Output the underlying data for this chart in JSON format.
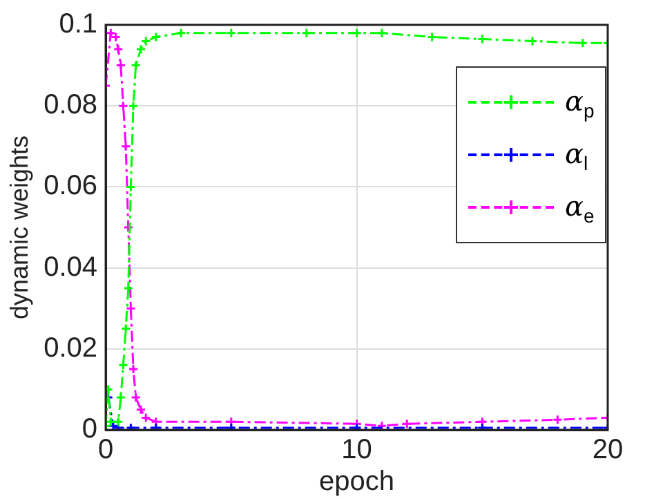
{
  "chart_data": {
    "type": "line",
    "xlabel": "epoch",
    "ylabel": "dynamic weights",
    "xlim": [
      0,
      20
    ],
    "xticks": [
      0,
      10,
      20
    ],
    "ylim": [
      0,
      0.1
    ],
    "yticks": [
      0,
      0.02,
      0.04,
      0.06,
      0.08,
      0.1
    ],
    "grid": true,
    "legend": "top right",
    "marker": "cross",
    "line_style": "dashed",
    "series": [
      {
        "name": "α$_{p}$",
        "color": "#00ff00",
        "x": [
          0,
          0.1,
          0.2,
          0.5,
          0.6,
          0.7,
          0.8,
          0.9,
          1.0,
          1.1,
          1.2,
          1.4,
          1.6,
          2,
          3,
          5,
          8,
          10,
          11,
          13,
          15,
          17,
          19,
          20
        ],
        "values": [
          0.001,
          0.01,
          0.002,
          0.002,
          0.008,
          0.016,
          0.025,
          0.035,
          0.06,
          0.08,
          0.09,
          0.094,
          0.096,
          0.097,
          0.098,
          0.098,
          0.098,
          0.098,
          0.098,
          0.097,
          0.0965,
          0.096,
          0.0955,
          0.0955
        ]
      },
      {
        "name": "α$_{l}$",
        "color": "#0000ff",
        "x": [
          0.1,
          0.3,
          0.5,
          1,
          2,
          5,
          10,
          15,
          20
        ],
        "values": [
          0.008,
          0.001,
          0.0005,
          0.0005,
          0.0005,
          0.0005,
          0.0005,
          0.0005,
          0.0005
        ]
      },
      {
        "name": "α$_{e}$",
        "color": "#ff00ff",
        "x": [
          0,
          0.2,
          0.4,
          0.5,
          0.6,
          0.7,
          0.8,
          0.9,
          1.0,
          1.1,
          1.2,
          1.4,
          1.6,
          2,
          5,
          10,
          11,
          12,
          15,
          18,
          20
        ],
        "values": [
          0.085,
          0.098,
          0.097,
          0.094,
          0.09,
          0.08,
          0.07,
          0.05,
          0.03,
          0.015,
          0.008,
          0.005,
          0.003,
          0.002,
          0.002,
          0.0015,
          0.001,
          0.0015,
          0.002,
          0.0025,
          0.003
        ]
      }
    ]
  }
}
